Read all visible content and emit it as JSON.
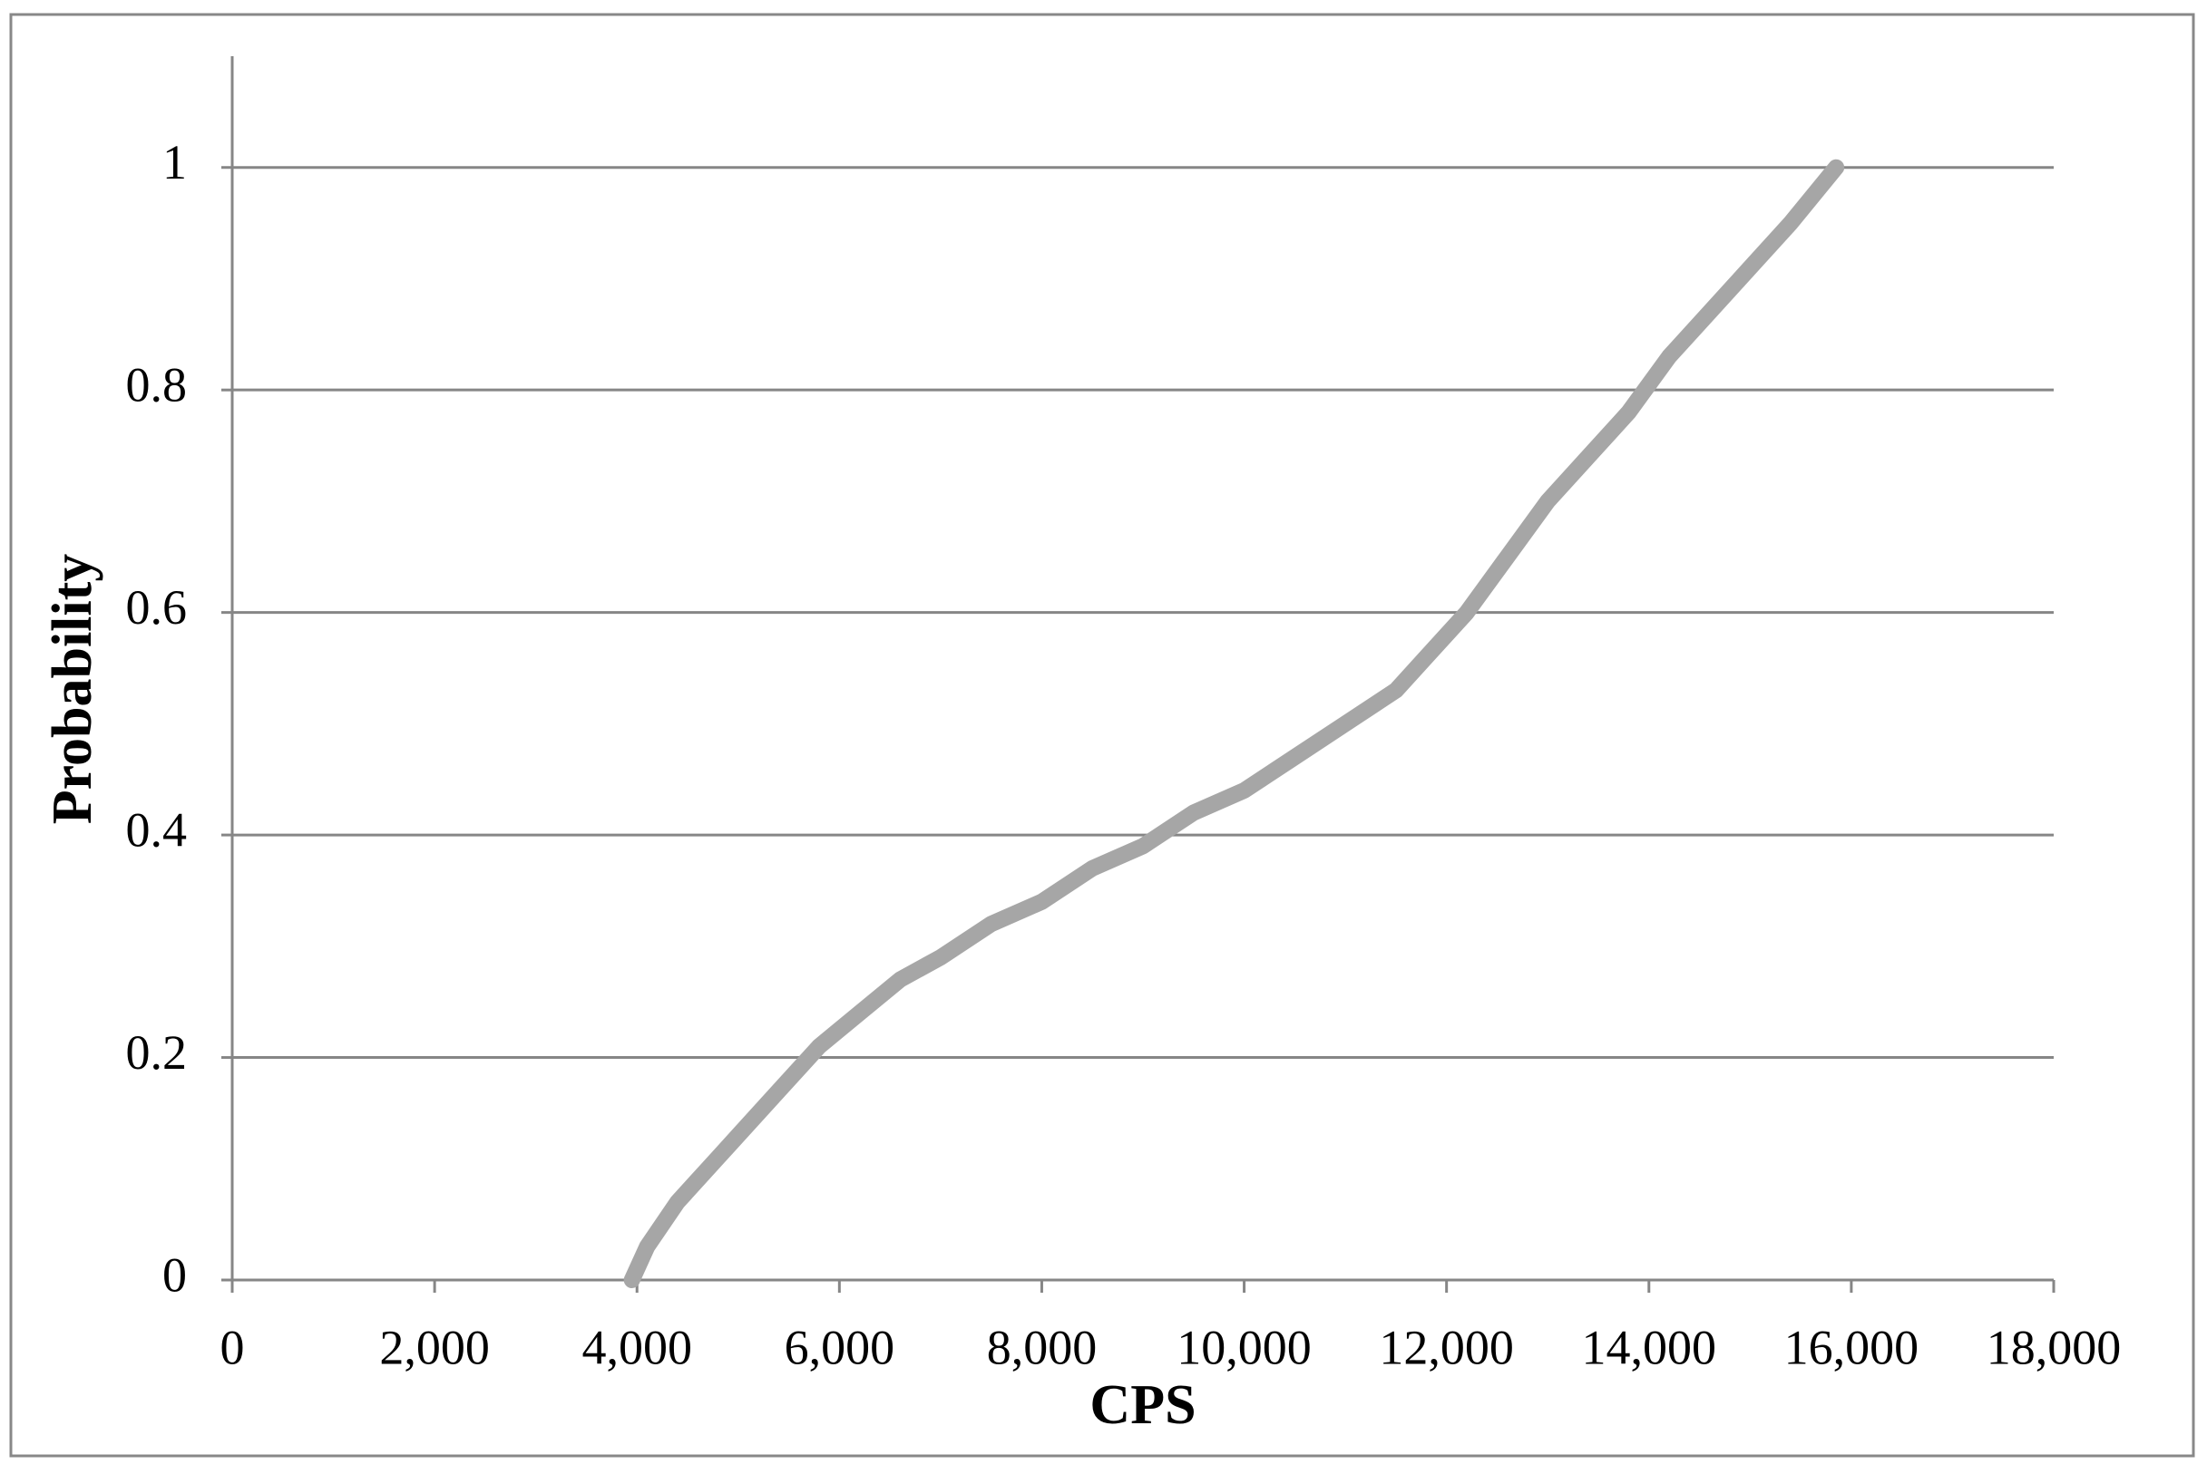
{
  "chart_data": {
    "type": "line",
    "x_label": "CPS",
    "y_label": "Probability",
    "x": [
      3950,
      4100,
      4400,
      4800,
      5000,
      5400,
      5800,
      6200,
      6600,
      7000,
      7500,
      8000,
      8500,
      9000,
      9500,
      10000,
      10500,
      11000,
      11500,
      11800,
      12200,
      12600,
      13000,
      13400,
      13800,
      14200,
      14600,
      15000,
      15400,
      15850
    ],
    "series": [
      {
        "color": "#a6a6a6",
        "values": [
          0,
          0.03,
          0.07,
          0.11,
          0.13,
          0.17,
          0.21,
          0.24,
          0.27,
          0.29,
          0.32,
          0.34,
          0.37,
          0.39,
          0.42,
          0.44,
          0.47,
          0.5,
          0.53,
          0.56,
          0.6,
          0.65,
          0.7,
          0.74,
          0.78,
          0.83,
          0.87,
          0.91,
          0.95,
          1
        ]
      }
    ],
    "xlim": [
      0,
      18000
    ],
    "xticks": [
      0,
      {
        "value": 2000,
        "label": "2,000"
      },
      {
        "value": 4000,
        "label": "4,000"
      },
      {
        "value": 6000,
        "label": "6,000"
      },
      {
        "value": 8000,
        "label": "8,000"
      },
      {
        "value": 10000,
        "label": "10,000"
      },
      {
        "value": 12000,
        "label": "12,000"
      },
      {
        "value": 14000,
        "label": "14,000"
      },
      {
        "value": 16000,
        "label": "16,000"
      },
      {
        "value": 18000,
        "label": "18,000"
      }
    ],
    "ylim": [
      0,
      1.1
    ],
    "yticks": [
      0,
      0.2,
      0.4,
      0.6,
      0.8,
      1
    ],
    "grid": true
  }
}
